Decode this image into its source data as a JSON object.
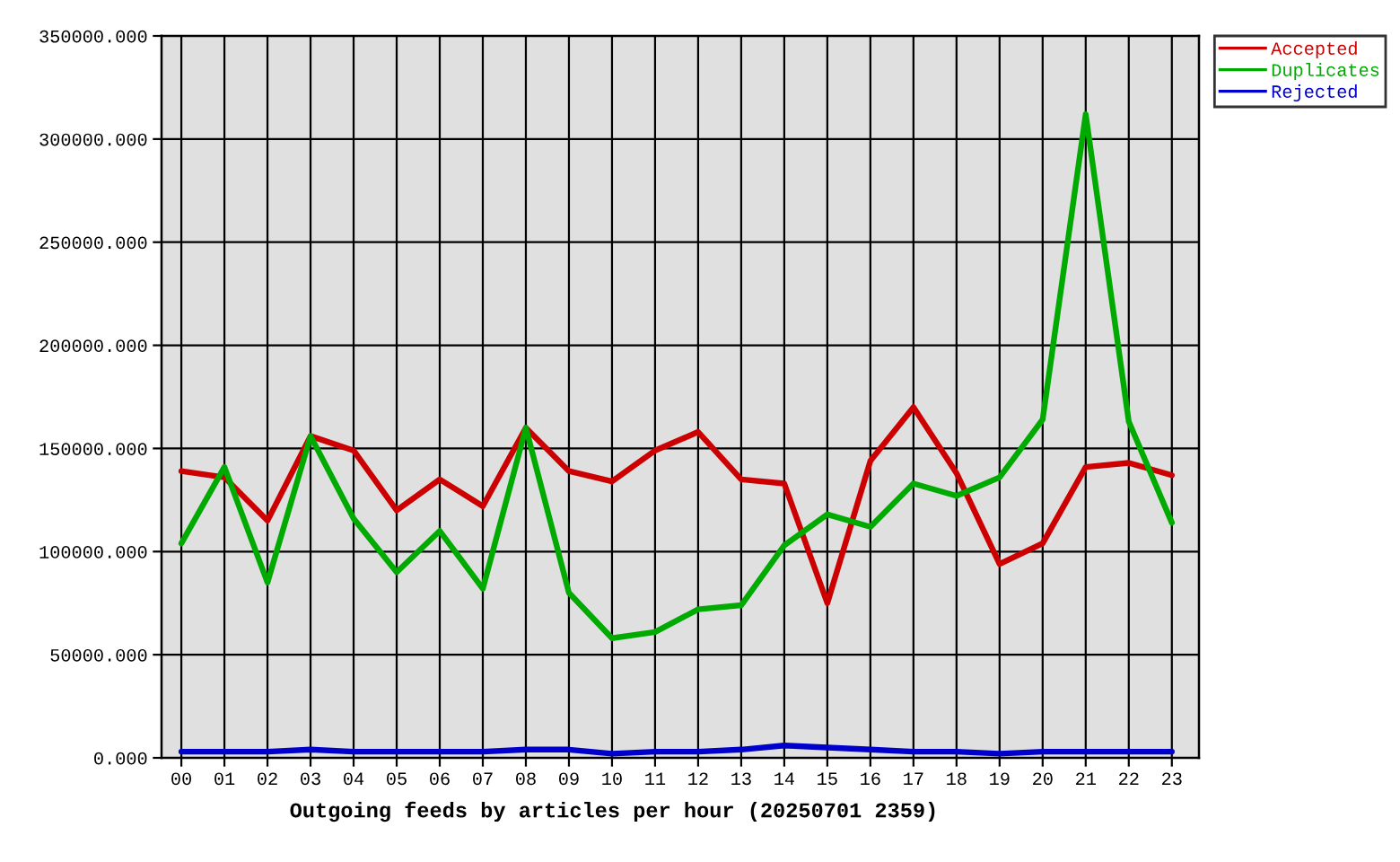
{
  "chart_data": {
    "type": "line",
    "title": "Outgoing feeds by articles per hour (20250701 2359)",
    "categories": [
      "00",
      "01",
      "02",
      "03",
      "04",
      "05",
      "06",
      "07",
      "08",
      "09",
      "10",
      "11",
      "12",
      "13",
      "14",
      "15",
      "16",
      "17",
      "18",
      "19",
      "20",
      "21",
      "22",
      "23"
    ],
    "series": [
      {
        "name": "Accepted",
        "color": "#cc0000",
        "values": [
          139000,
          136000,
          115000,
          156000,
          149000,
          120000,
          135000,
          122000,
          160000,
          139000,
          134000,
          149000,
          158000,
          135000,
          133000,
          75000,
          144000,
          170000,
          138000,
          94000,
          104000,
          141000,
          143000,
          137000
        ]
      },
      {
        "name": "Duplicates",
        "color": "#00aa00",
        "values": [
          104000,
          141000,
          85000,
          156000,
          116000,
          90000,
          110000,
          82000,
          160000,
          80000,
          58000,
          61000,
          72000,
          74000,
          103000,
          118000,
          112000,
          133000,
          127000,
          136000,
          164000,
          312000,
          163000,
          114000
        ]
      },
      {
        "name": "Rejected",
        "color": "#0000cc",
        "values": [
          3000,
          3000,
          3000,
          4000,
          3000,
          3000,
          3000,
          3000,
          4000,
          4000,
          2000,
          3000,
          3000,
          4000,
          6000,
          5000,
          4000,
          3000,
          3000,
          2000,
          3000,
          3000,
          3000,
          3000
        ]
      }
    ],
    "ylim": [
      0,
      350000
    ],
    "yticks": [
      {
        "value": 0,
        "label": "0.000"
      },
      {
        "value": 50000,
        "label": "50000.000"
      },
      {
        "value": 100000,
        "label": "100000.000"
      },
      {
        "value": 150000,
        "label": "150000.000"
      },
      {
        "value": 200000,
        "label": "200000.000"
      },
      {
        "value": 250000,
        "label": "250000.000"
      },
      {
        "value": 300000,
        "label": "300000.000"
      },
      {
        "value": 350000,
        "label": "350000.000"
      }
    ],
    "grid": true,
    "legend": "top right",
    "line_style": "solid"
  }
}
